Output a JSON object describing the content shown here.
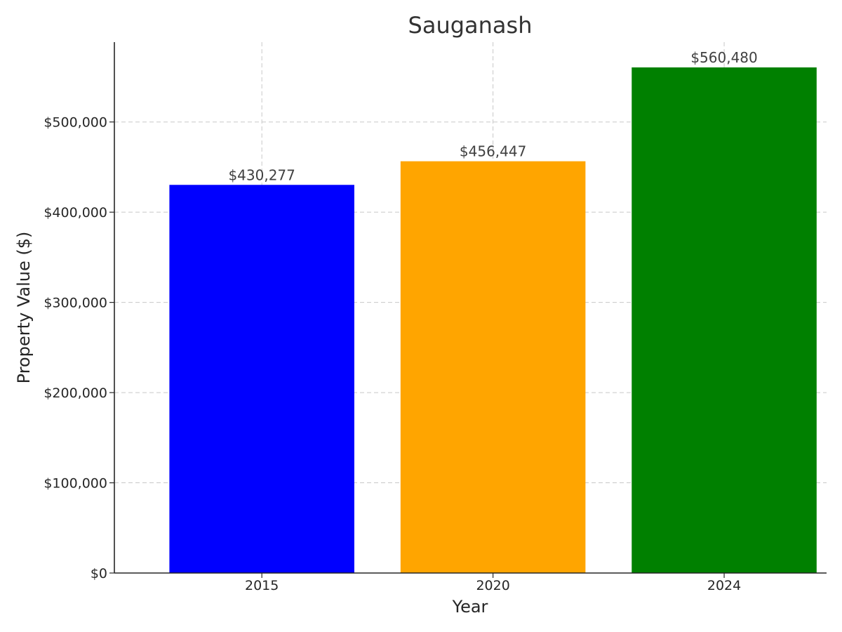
{
  "chart_data": {
    "type": "bar",
    "title": "Sauganash",
    "xlabel": "Year",
    "ylabel": "Property Value ($)",
    "categories": [
      "2015",
      "2020",
      "2024"
    ],
    "values": [
      430277,
      456447,
      560480
    ],
    "value_labels": [
      "$430,277",
      "$456,447",
      "$560,480"
    ],
    "colors": [
      "#0000ff",
      "#ffa500",
      "#008000"
    ],
    "ylim": [
      0,
      588504
    ],
    "yticks": [
      0,
      100000,
      200000,
      300000,
      400000,
      500000
    ],
    "ytick_labels": [
      "$0",
      "$100,000",
      "$200,000",
      "$300,000",
      "$400,000",
      "$500,000"
    ],
    "grid": true,
    "grid_color": "#c8c8c8"
  }
}
